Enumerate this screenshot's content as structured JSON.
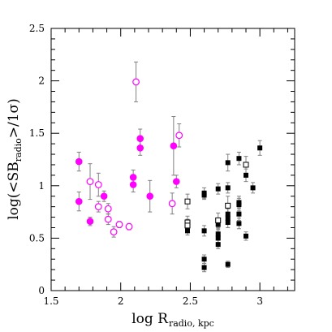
{
  "chart_data": {
    "type": "scatter",
    "xlim": [
      1.5,
      3.25
    ],
    "ylim": [
      0,
      2.5
    ],
    "xticks": [
      "1.5",
      "2",
      "2.5",
      "3"
    ],
    "yticks": [
      "0",
      "0.5",
      "1",
      "1.5",
      "2",
      "2.5"
    ],
    "xlabel": {
      "main": "log R",
      "sub": "radio, kpc"
    },
    "ylabel": {
      "pre": "log(<SB",
      "sub": "radio",
      "post": ">/1σ)"
    },
    "grid": false,
    "legend": "none",
    "colors": {
      "magenta": "#ff00ff",
      "black": "#000000",
      "errorbar": "#808080"
    },
    "series": [
      {
        "marker": "circle-filled",
        "color": "#ff00ff",
        "points": [
          {
            "x": 1.7,
            "y": 1.23,
            "err": 0.09
          },
          {
            "x": 1.7,
            "y": 0.85,
            "err": 0.09
          },
          {
            "x": 1.78,
            "y": 0.66,
            "err": 0.04
          },
          {
            "x": 1.88,
            "y": 0.9,
            "err": 0.05
          },
          {
            "x": 2.09,
            "y": 1.08,
            "err": 0.07
          },
          {
            "x": 2.09,
            "y": 1.01,
            "err": 0.07
          },
          {
            "x": 2.14,
            "y": 1.45,
            "err": 0.09
          },
          {
            "x": 2.14,
            "y": 1.36,
            "err": 0.07
          },
          {
            "x": 2.21,
            "y": 0.9,
            "err": 0.15
          },
          {
            "x": 2.38,
            "y": 1.38,
            "err": 0.28
          },
          {
            "x": 2.4,
            "y": 1.04,
            "err": 0.06
          }
        ]
      },
      {
        "marker": "circle-open",
        "color": "#ff00ff",
        "points": [
          {
            "x": 1.78,
            "y": 1.04,
            "err": 0.17
          },
          {
            "x": 1.84,
            "y": 1.01,
            "err": 0.11
          },
          {
            "x": 1.84,
            "y": 0.8,
            "err": 0.05
          },
          {
            "x": 1.91,
            "y": 0.78,
            "err": 0.05
          },
          {
            "x": 1.91,
            "y": 0.68,
            "err": 0.05
          },
          {
            "x": 1.95,
            "y": 0.56,
            "err": 0.05
          },
          {
            "x": 1.99,
            "y": 0.63,
            "err": 0.03
          },
          {
            "x": 2.06,
            "y": 0.61,
            "err": 0.03
          },
          {
            "x": 2.11,
            "y": 1.99,
            "err": 0.19
          },
          {
            "x": 2.37,
            "y": 0.83,
            "err": 0.1
          },
          {
            "x": 2.42,
            "y": 1.48,
            "err": 0.11
          }
        ]
      },
      {
        "marker": "square-filled",
        "color": "#000000",
        "points": [
          {
            "x": 2.48,
            "y": 0.57,
            "err": 0.04
          },
          {
            "x": 2.6,
            "y": 0.93,
            "err": 0.05
          },
          {
            "x": 2.6,
            "y": 0.91,
            "err": 0.04
          },
          {
            "x": 2.6,
            "y": 0.57,
            "err": 0.05
          },
          {
            "x": 2.6,
            "y": 0.3,
            "err": 0.04
          },
          {
            "x": 2.6,
            "y": 0.22,
            "err": 0.04
          },
          {
            "x": 2.7,
            "y": 0.97,
            "err": 0.05
          },
          {
            "x": 2.7,
            "y": 0.63,
            "err": 0.05
          },
          {
            "x": 2.7,
            "y": 0.54,
            "err": 0.05
          },
          {
            "x": 2.7,
            "y": 0.5,
            "err": 0.05
          },
          {
            "x": 2.7,
            "y": 0.44,
            "err": 0.04
          },
          {
            "x": 2.77,
            "y": 1.22,
            "err": 0.08
          },
          {
            "x": 2.77,
            "y": 0.98,
            "err": 0.05
          },
          {
            "x": 2.77,
            "y": 0.73,
            "err": 0.05
          },
          {
            "x": 2.77,
            "y": 0.69,
            "err": 0.05
          },
          {
            "x": 2.77,
            "y": 0.65,
            "err": 0.05
          },
          {
            "x": 2.77,
            "y": 0.25,
            "err": 0.03
          },
          {
            "x": 2.85,
            "y": 1.26,
            "err": 0.06
          },
          {
            "x": 2.85,
            "y": 0.84,
            "err": 0.06
          },
          {
            "x": 2.85,
            "y": 0.82,
            "err": 0.06
          },
          {
            "x": 2.85,
            "y": 0.73,
            "err": 0.06
          },
          {
            "x": 2.85,
            "y": 0.64,
            "err": 0.05
          },
          {
            "x": 2.9,
            "y": 1.1,
            "err": 0.06
          },
          {
            "x": 2.9,
            "y": 0.52,
            "err": 0.04
          },
          {
            "x": 2.95,
            "y": 0.98,
            "err": 0.05
          },
          {
            "x": 3.0,
            "y": 1.36,
            "err": 0.07
          }
        ]
      },
      {
        "marker": "square-open",
        "color": "#000000",
        "points": [
          {
            "x": 2.48,
            "y": 0.85,
            "err": 0.07
          },
          {
            "x": 2.48,
            "y": 0.65,
            "err": 0.06
          },
          {
            "x": 2.48,
            "y": 0.62,
            "err": 0.06
          },
          {
            "x": 2.7,
            "y": 0.67,
            "err": 0.07
          },
          {
            "x": 2.77,
            "y": 0.81,
            "err": 0.09
          },
          {
            "x": 2.9,
            "y": 1.2,
            "err": 0.08
          }
        ]
      }
    ]
  }
}
